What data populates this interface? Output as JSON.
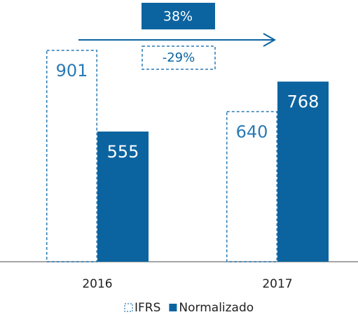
{
  "chart_data": {
    "type": "bar",
    "categories": [
      "2016",
      "2017"
    ],
    "series": [
      {
        "name": "IFRS",
        "color": "#2a7ab5",
        "style": "dashed",
        "values": [
          901,
          640
        ]
      },
      {
        "name": "Normalizado",
        "color": "#0b64a0",
        "style": "filled",
        "values": [
          555,
          768
        ]
      }
    ],
    "annotations": [
      "38%",
      "-29%"
    ],
    "legend": "bottom"
  }
}
